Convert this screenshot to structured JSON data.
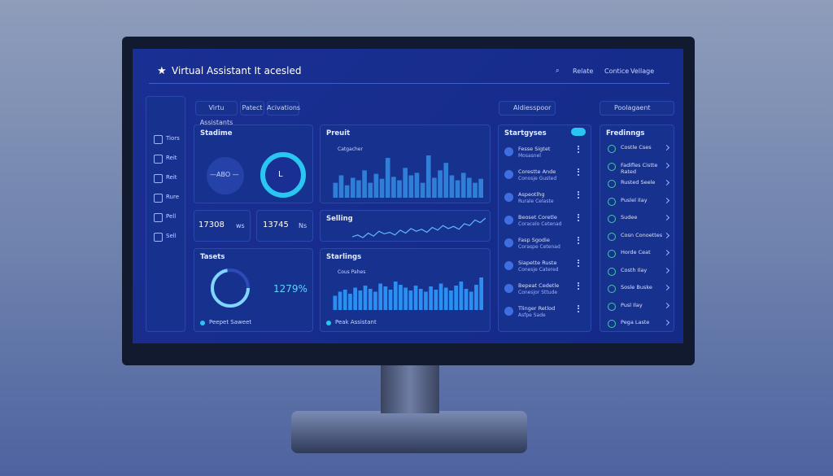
{
  "header": {
    "title": "Virtual Assistant It acesled",
    "links": [
      "Relate",
      "Contice",
      "Vellage"
    ]
  },
  "toolbar": {
    "tabs": [
      "Virtu Assistants",
      "Patect",
      "Acivations"
    ],
    "search": "Aldiesspoor",
    "button": "Poolagaent"
  },
  "sidebar": [
    "Tiors",
    "Reit",
    "Reit",
    "Rure",
    "Pell",
    "Sell"
  ],
  "panels": {
    "stadime": {
      "title": "Stadime",
      "gauge": "—ABO —",
      "ring": "L"
    },
    "stats": [
      {
        "value": "17308",
        "unit": "ws"
      },
      {
        "value": "13745",
        "unit": "Ns"
      }
    ],
    "profit": {
      "title": "Preuit",
      "legend": "Catgacher",
      "bars": [
        30,
        45,
        25,
        40,
        35,
        55,
        30,
        48,
        38,
        80,
        42,
        35,
        60,
        45,
        50,
        30,
        85,
        40,
        55,
        70,
        45,
        35,
        50,
        40,
        30,
        38
      ]
    },
    "selling": {
      "title": "Selling",
      "line": [
        40,
        45,
        38,
        50,
        42,
        55,
        48,
        52,
        45,
        58,
        50,
        62,
        55,
        60,
        52,
        65,
        58,
        70,
        62,
        68,
        60,
        75,
        70,
        85,
        78,
        90
      ]
    },
    "targets": {
      "title": "Tasets",
      "percent": "1279%",
      "footer": "Peepet Saweet"
    },
    "startings": {
      "title": "Starlings",
      "legend": "Cous Pahes",
      "bars": [
        35,
        45,
        50,
        40,
        55,
        48,
        60,
        52,
        45,
        65,
        58,
        50,
        70,
        62,
        55,
        48,
        60,
        52,
        45,
        58,
        50,
        65,
        55,
        48,
        60,
        70,
        52,
        45,
        62,
        80
      ]
    },
    "assistant": {
      "footer": "Peak Assistant"
    }
  },
  "startgyses": {
    "title": "Startgyses",
    "items": [
      [
        "Fesse Sigtet",
        "Mosasnel"
      ],
      [
        "Corestte Ande",
        "Conosje Gusted"
      ],
      [
        "Aspeotlhg",
        "Rurale Celaste"
      ],
      [
        "Beoset Coretle",
        "Coracelo Cetenad"
      ],
      [
        "Fasp Sgodie",
        "Coraspe Cetenad"
      ],
      [
        "Siapette Ruste",
        "Conesje Catered"
      ],
      [
        "Bepeat Cedetle",
        "Conesjor Sttude"
      ],
      [
        "Tlinger Retlod",
        "Asfpe Sade"
      ]
    ]
  },
  "findings": {
    "title": "Fredinngs",
    "items": [
      "Costle Cses",
      "Fadifles Cistte Rated",
      "Rusted Seele",
      "Puslel Ilay",
      "Sudee",
      "Cosn Conoettes",
      "Horde Ceat",
      "Costh Ilay",
      "Sosle Buske",
      "Pusl Ilay",
      "Pega Laste"
    ]
  }
}
